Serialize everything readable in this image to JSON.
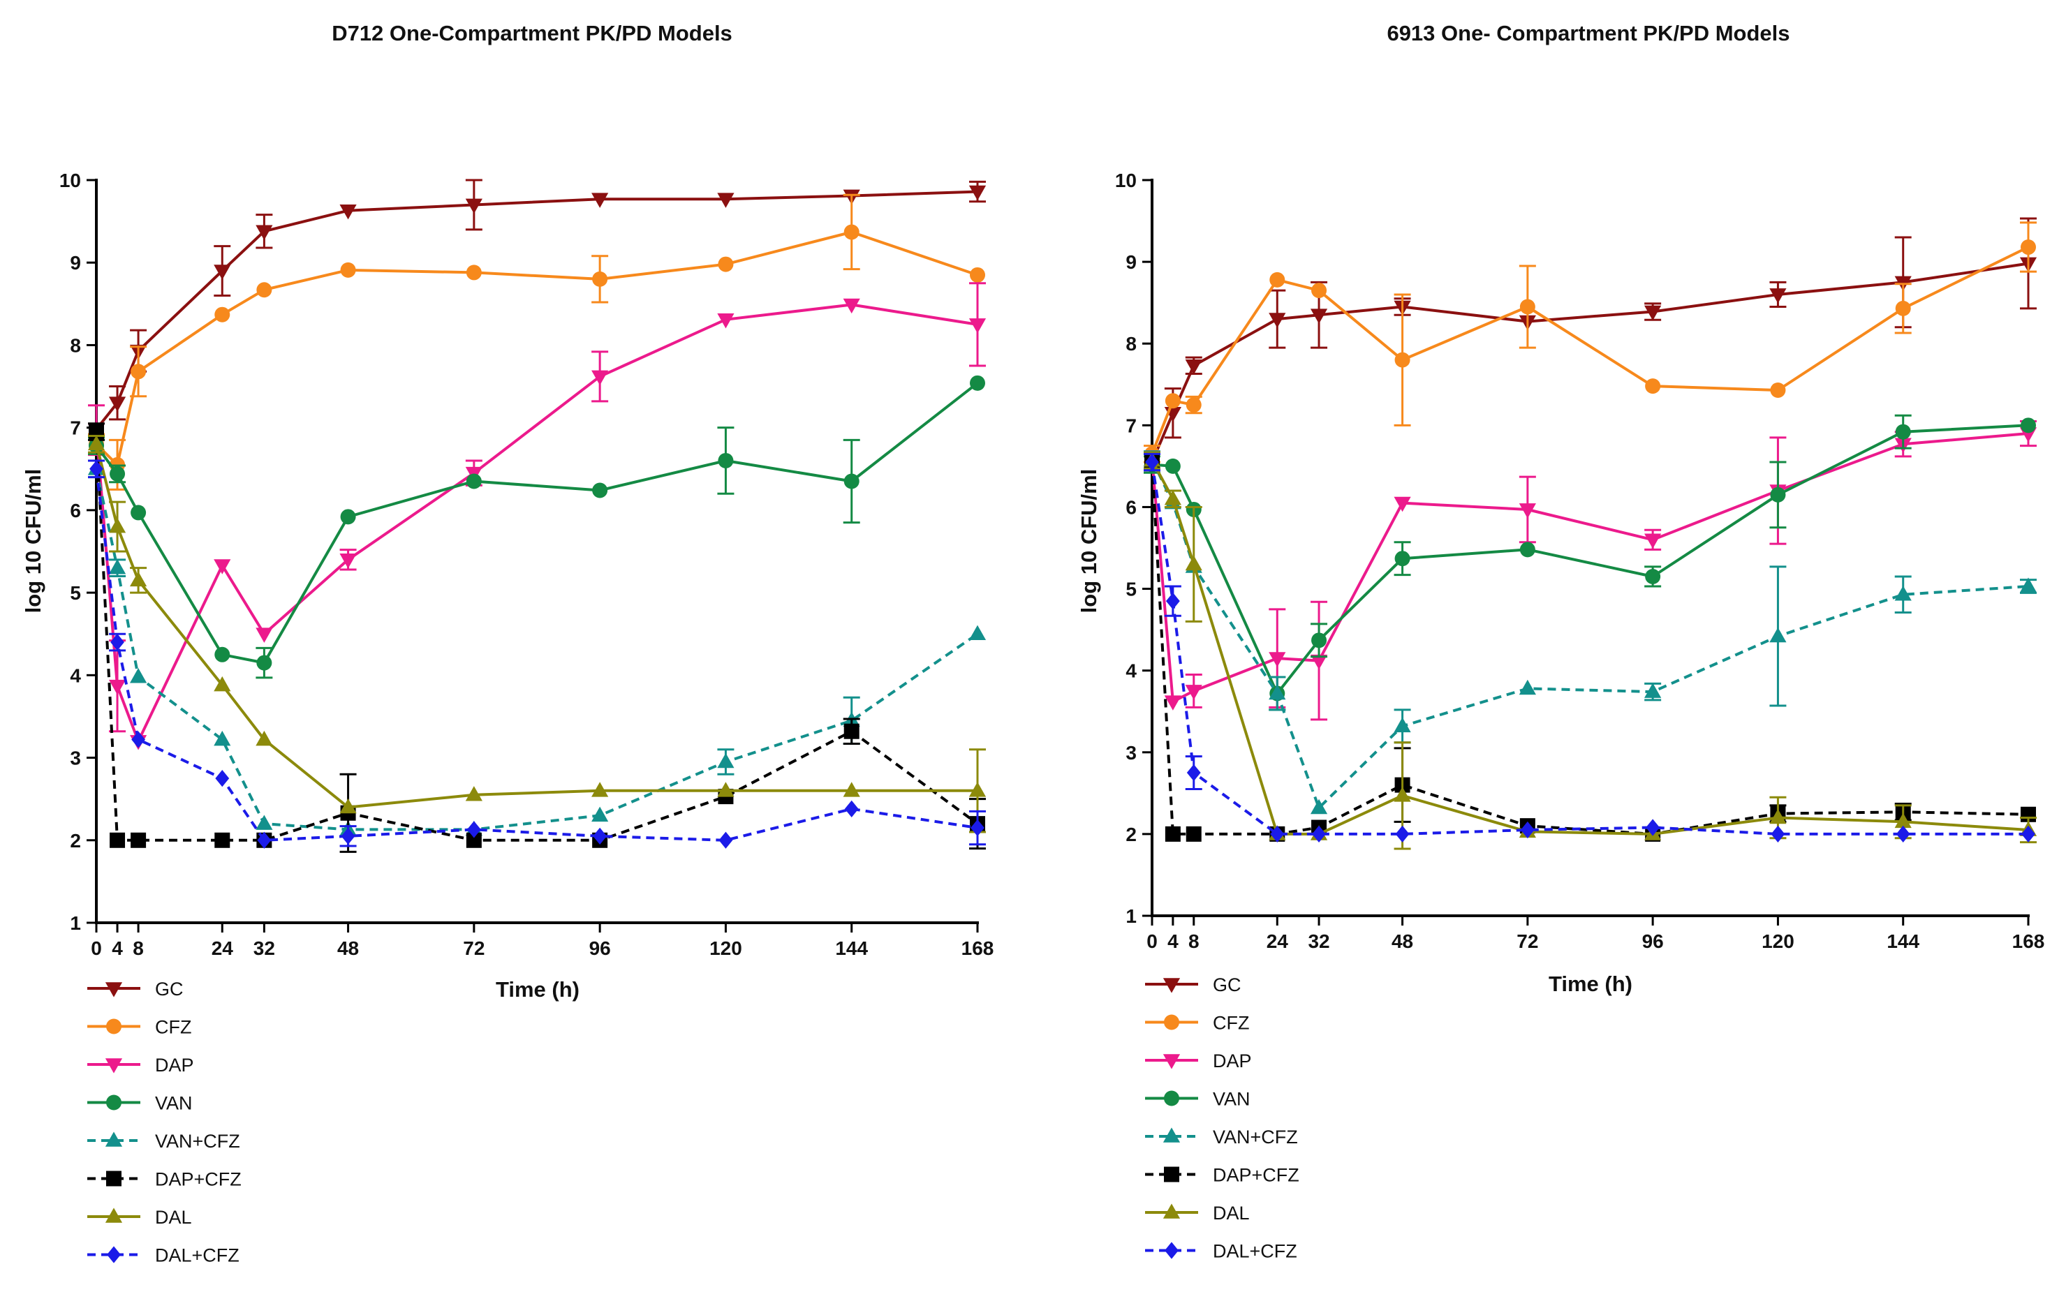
{
  "chart_data": [
    {
      "type": "line",
      "title": "D712 One-Compartment PK/PD Models",
      "xlabel": "Time (h)",
      "ylabel": "log 10 CFU/ml",
      "x": [
        0,
        4,
        8,
        24,
        32,
        48,
        72,
        96,
        120,
        144,
        168
      ],
      "x_ticks": [
        "0",
        "4",
        "8",
        "24",
        "32",
        "48",
        "72",
        "96",
        "120",
        "144",
        "168"
      ],
      "y_ticks": [
        "1",
        "2",
        "3",
        "4",
        "5",
        "6",
        "7",
        "8",
        "9",
        "10"
      ],
      "xlim": [
        0,
        168
      ],
      "ylim": [
        1,
        10
      ],
      "grid": false,
      "legend_position": "bottom-left",
      "series": [
        {
          "name": "GC",
          "color": "#8B1010",
          "marker": "triangle-down",
          "dashed": false,
          "values": [
            6.98,
            7.3,
            7.93,
            8.9,
            9.38,
            9.63,
            9.7,
            9.77,
            9.77,
            9.81,
            9.86
          ],
          "errors": [
            0.05,
            0.2,
            0.25,
            0.3,
            0.2,
            0.05,
            0.3,
            0.05,
            0.05,
            0.05,
            0.12
          ]
        },
        {
          "name": "CFZ",
          "color": "#F7891C",
          "marker": "circle",
          "dashed": false,
          "values": [
            6.8,
            6.55,
            7.68,
            8.37,
            8.67,
            8.91,
            8.88,
            8.8,
            8.98,
            9.37,
            8.85
          ],
          "errors": [
            0.12,
            0.3,
            0.3,
            0.05,
            0.05,
            0.05,
            0.05,
            0.28,
            0.05,
            0.45,
            0.05
          ]
        },
        {
          "name": "DAP",
          "color": "#EC1A8C",
          "marker": "triangle-down",
          "dashed": false,
          "values": [
            6.97,
            3.87,
            3.2,
            5.33,
            4.5,
            5.4,
            6.45,
            7.62,
            8.31,
            8.49,
            8.25
          ],
          "errors": [
            0.3,
            0.55,
            0.05,
            0.05,
            0.05,
            0.12,
            0.15,
            0.3,
            0.05,
            0.05,
            0.5
          ]
        },
        {
          "name": "VAN",
          "color": "#148A44",
          "marker": "circle",
          "dashed": false,
          "values": [
            6.78,
            6.44,
            5.97,
            4.25,
            4.15,
            5.92,
            6.35,
            6.24,
            6.6,
            6.35,
            7.54
          ],
          "errors": [
            0.1,
            0.1,
            0.05,
            0.05,
            0.18,
            0.05,
            0.05,
            0.05,
            0.4,
            0.5,
            0.05
          ]
        },
        {
          "name": "VAN+CFZ",
          "color": "#13908C",
          "marker": "triangle-up",
          "dashed": true,
          "values": [
            6.5,
            5.3,
            3.98,
            3.22,
            2.2,
            2.13,
            2.13,
            2.3,
            2.95,
            3.45,
            4.5
          ],
          "errors": [
            0.1,
            0.1,
            0.05,
            0.05,
            0.05,
            0.05,
            0.05,
            0.05,
            0.15,
            0.28,
            0.05
          ]
        },
        {
          "name": "DAP+CFZ",
          "color": "#000000",
          "marker": "square",
          "dashed": true,
          "values": [
            6.95,
            2.0,
            2.0,
            2.0,
            2.0,
            2.33,
            2.0,
            2.0,
            2.53,
            3.32,
            2.2
          ],
          "errors": [
            0.1,
            0.05,
            0.05,
            0.05,
            0.05,
            0.47,
            0.05,
            0.05,
            0.05,
            0.15,
            0.3
          ]
        },
        {
          "name": "DAL",
          "color": "#8C8A0B",
          "marker": "triangle-up",
          "dashed": false,
          "values": [
            6.8,
            5.8,
            5.15,
            3.88,
            3.22,
            2.4,
            2.55,
            2.6,
            2.6,
            2.6,
            2.6
          ],
          "errors": [
            0.1,
            0.3,
            0.15,
            0.05,
            0.05,
            0.05,
            0.05,
            0.05,
            0.05,
            0.05,
            0.5
          ]
        },
        {
          "name": "DAL+CFZ",
          "color": "#1B1BE8",
          "marker": "diamond",
          "dashed": true,
          "values": [
            6.5,
            4.4,
            3.22,
            2.75,
            2.0,
            2.05,
            2.13,
            2.05,
            2.0,
            2.38,
            2.15
          ],
          "errors": [
            0.1,
            0.1,
            0.05,
            0.05,
            0.05,
            0.12,
            0.05,
            0.05,
            0.05,
            0.05,
            0.2
          ]
        }
      ]
    },
    {
      "type": "line",
      "title": "6913 One- Compartment PK/PD Models",
      "xlabel": "Time (h)",
      "ylabel": "log 10 CFU/ml",
      "x": [
        0,
        4,
        8,
        24,
        32,
        48,
        72,
        96,
        120,
        144,
        168
      ],
      "x_ticks": [
        "0",
        "4",
        "8",
        "24",
        "32",
        "48",
        "72",
        "96",
        "120",
        "144",
        "168"
      ],
      "y_ticks": [
        "1",
        "2",
        "3",
        "4",
        "5",
        "6",
        "7",
        "8",
        "9",
        "10"
      ],
      "xlim": [
        0,
        168
      ],
      "ylim": [
        1,
        10
      ],
      "grid": false,
      "legend_position": "bottom-left",
      "series": [
        {
          "name": "GC",
          "color": "#8B1010",
          "marker": "triangle-down",
          "dashed": false,
          "values": [
            6.55,
            7.15,
            7.73,
            8.3,
            8.35,
            8.45,
            8.27,
            8.39,
            8.6,
            8.75,
            8.98
          ],
          "errors": [
            0.1,
            0.3,
            0.1,
            0.35,
            0.4,
            0.1,
            0.05,
            0.1,
            0.15,
            0.55,
            0.55
          ]
        },
        {
          "name": "CFZ",
          "color": "#F7891C",
          "marker": "circle",
          "dashed": false,
          "values": [
            6.65,
            7.3,
            7.25,
            8.78,
            8.65,
            7.8,
            8.45,
            7.48,
            7.43,
            8.43,
            9.18
          ],
          "errors": [
            0.1,
            0.05,
            0.1,
            0.05,
            0.05,
            0.8,
            0.5,
            0.05,
            0.05,
            0.3,
            0.3
          ]
        },
        {
          "name": "DAP",
          "color": "#EC1A8C",
          "marker": "triangle-down",
          "dashed": false,
          "values": [
            6.58,
            3.62,
            3.75,
            4.15,
            4.12,
            6.05,
            5.97,
            5.6,
            6.2,
            6.77,
            6.9
          ],
          "errors": [
            0.1,
            0.05,
            0.2,
            0.6,
            0.72,
            0.05,
            0.4,
            0.12,
            0.65,
            0.15,
            0.15
          ]
        },
        {
          "name": "VAN",
          "color": "#148A44",
          "marker": "circle",
          "dashed": false,
          "values": [
            6.52,
            6.5,
            5.97,
            3.72,
            4.37,
            5.37,
            5.48,
            5.15,
            6.15,
            6.92,
            7.0
          ],
          "errors": [
            0.1,
            0.05,
            0.05,
            0.2,
            0.2,
            0.2,
            0.05,
            0.12,
            0.4,
            0.2,
            0.05
          ]
        },
        {
          "name": "VAN+CFZ",
          "color": "#13908C",
          "marker": "triangle-up",
          "dashed": true,
          "values": [
            6.58,
            6.05,
            5.27,
            3.72,
            2.32,
            3.32,
            3.78,
            3.74,
            4.42,
            4.93,
            5.03
          ],
          "errors": [
            0.1,
            0.05,
            0.05,
            0.2,
            0.05,
            0.2,
            0.05,
            0.1,
            0.85,
            0.22,
            0.08
          ]
        },
        {
          "name": "DAP+CFZ",
          "color": "#000000",
          "marker": "square",
          "dashed": true,
          "values": [
            6.55,
            2.0,
            2.0,
            2.0,
            2.08,
            2.6,
            2.1,
            2.0,
            2.25,
            2.27,
            2.24
          ],
          "errors": [
            0.1,
            0.05,
            0.05,
            0.05,
            0.05,
            0.45,
            0.05,
            0.05,
            0.1,
            0.1,
            0.05
          ]
        },
        {
          "name": "DAL",
          "color": "#8C8A0B",
          "marker": "triangle-up",
          "dashed": false,
          "values": [
            6.57,
            6.1,
            5.3,
            2.0,
            2.0,
            2.47,
            2.03,
            2.0,
            2.2,
            2.15,
            2.05
          ],
          "errors": [
            0.1,
            0.1,
            0.7,
            0.05,
            0.05,
            0.65,
            0.05,
            0.05,
            0.25,
            0.2,
            0.15
          ]
        },
        {
          "name": "DAL+CFZ",
          "color": "#1B1BE8",
          "marker": "diamond",
          "dashed": true,
          "values": [
            6.55,
            4.85,
            2.75,
            2.0,
            2.0,
            2.0,
            2.05,
            2.08,
            2.0,
            2.0,
            2.0
          ],
          "errors": [
            0.1,
            0.18,
            0.2,
            0.05,
            0.05,
            0.05,
            0.05,
            0.05,
            0.05,
            0.05,
            0.05
          ]
        }
      ]
    }
  ]
}
